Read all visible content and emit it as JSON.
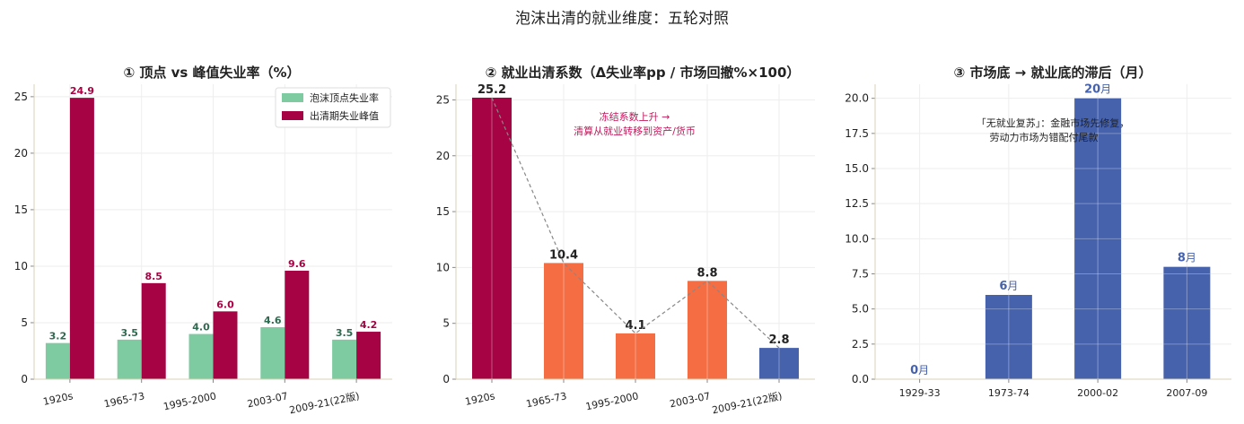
{
  "figure": {
    "title": "泡沫出清的就业维度：五轮对照"
  },
  "colors": {
    "teal": "#7ecba1",
    "crimson": "#a50343",
    "orange": "#f46d43",
    "blue": "#4662ad",
    "grid": "#eeeeee",
    "axis": "#d8d2b8",
    "teal_label": "#2d6a4f",
    "annot": "#c2185b",
    "dash": "#888888"
  },
  "chart_data": [
    {
      "type": "bar",
      "title": "① 顶点 vs 峰值失业率（%）",
      "categories": [
        "1920s",
        "1965-73",
        "1995-2000",
        "2003-07",
        "2009-21(22版)"
      ],
      "series": [
        {
          "name": "泡沫顶点失业率",
          "values": [
            3.2,
            3.5,
            4.0,
            4.6,
            3.5
          ],
          "labels": [
            "3.2",
            "3.5",
            "4.0",
            "4.6",
            "3.5"
          ]
        },
        {
          "name": "出清期失业峰值",
          "values": [
            24.9,
            8.5,
            6.0,
            9.6,
            4.2
          ],
          "labels": [
            "24.9",
            "8.5",
            "6.0",
            "9.6",
            "4.2"
          ]
        }
      ],
      "ylim": [
        0,
        26.1
      ],
      "yticks": [
        0,
        5,
        10,
        15,
        20,
        25
      ],
      "ytick_labels": [
        "0",
        "5",
        "10",
        "15",
        "20",
        "25"
      ],
      "legend": "top-right",
      "grid": true
    },
    {
      "type": "bar",
      "title": "② 就业出清系数（Δ失业率pp / 市场回撤%×100）",
      "categories": [
        "1920s",
        "1965-73",
        "1995-2000",
        "2003-07",
        "2009-21(22版)"
      ],
      "values": [
        25.2,
        10.4,
        4.1,
        8.8,
        2.8
      ],
      "labels": [
        "25.2",
        "10.4",
        "4.1",
        "8.8",
        "2.8"
      ],
      "trend_line": true,
      "ylim": [
        0,
        26.4
      ],
      "yticks": [
        0,
        5,
        10,
        15,
        20,
        25
      ],
      "ytick_labels": [
        "0",
        "5",
        "10",
        "15",
        "20",
        "25"
      ],
      "annotation": [
        "冻结系数上升 →",
        "清算从就业转移到资产/货币"
      ],
      "grid": true
    },
    {
      "type": "bar",
      "title": "③ 市场底 → 就业底的滞后（月）",
      "categories": [
        "1929-33",
        "1973-74",
        "2000-02",
        "2007-09"
      ],
      "values": [
        0,
        6,
        20,
        8
      ],
      "labels": [
        {
          "num": "0",
          "unit": "月"
        },
        {
          "num": "6",
          "unit": "月"
        },
        {
          "num": "20",
          "unit": "月"
        },
        {
          "num": "8",
          "unit": "月"
        }
      ],
      "ylim": [
        0,
        21
      ],
      "yticks": [
        0,
        2.5,
        5,
        7.5,
        10,
        12.5,
        15,
        17.5,
        20
      ],
      "ytick_labels": [
        "0.0",
        "2.5",
        "5.0",
        "7.5",
        "10.0",
        "12.5",
        "15.0",
        "17.5",
        "20.0"
      ],
      "annotation": [
        "「无就业复苏」：金融市场先修复，",
        "劳动力市场为错配付尾款"
      ],
      "grid": true
    }
  ]
}
